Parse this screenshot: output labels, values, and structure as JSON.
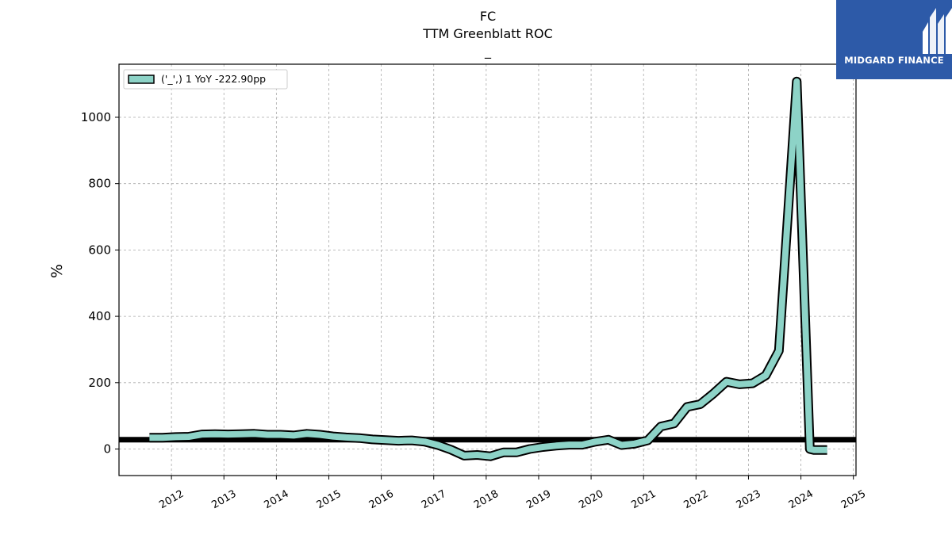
{
  "chart_data": {
    "type": "line",
    "title": "FC",
    "subtitle": "TTM Greenblatt ROC",
    "subtitle2": "_",
    "ylabel": "%",
    "xlabel": "",
    "ylim": [
      -80,
      1160
    ],
    "xlim": [
      2011.0,
      2025.05
    ],
    "yticks": [
      0,
      200,
      400,
      600,
      800,
      1000
    ],
    "xticks": [
      "2012",
      "2013",
      "2014",
      "2015",
      "2016",
      "2017",
      "2018",
      "2019",
      "2020",
      "2021",
      "2022",
      "2023",
      "2024",
      "2025"
    ],
    "grid": true,
    "legend_position": "top-left",
    "reference_line": 28,
    "series": [
      {
        "name": "('_',) 1 YoY -222.90pp",
        "color": "#8dd3c7",
        "x": [
          2011.58,
          2011.83,
          2012.08,
          2012.33,
          2012.58,
          2012.83,
          2013.08,
          2013.33,
          2013.58,
          2013.83,
          2014.08,
          2014.33,
          2014.58,
          2014.83,
          2015.08,
          2015.33,
          2015.58,
          2015.83,
          2016.08,
          2016.33,
          2016.58,
          2016.83,
          2017.08,
          2017.33,
          2017.58,
          2017.83,
          2018.08,
          2018.33,
          2018.58,
          2018.83,
          2019.08,
          2019.33,
          2019.58,
          2019.83,
          2020.08,
          2020.33,
          2020.58,
          2020.83,
          2021.08,
          2021.33,
          2021.58,
          2021.83,
          2022.08,
          2022.33,
          2022.58,
          2022.83,
          2023.08,
          2023.33,
          2023.58,
          2023.92,
          2024.17,
          2024.25,
          2024.5
        ],
        "values": [
          34,
          34,
          36,
          37,
          44,
          45,
          44,
          45,
          46,
          43,
          43,
          41,
          46,
          43,
          38,
          35,
          33,
          29,
          27,
          25,
          26,
          22,
          12,
          -2,
          -20,
          -18,
          -22,
          -10,
          -10,
          0,
          6,
          10,
          13,
          13,
          22,
          28,
          12,
          16,
          26,
          68,
          77,
          127,
          135,
          167,
          203,
          195,
          198,
          222,
          296,
          1108,
          0,
          -3,
          -3
        ]
      }
    ]
  },
  "logo": {
    "text": "MIDGARD FINANCE"
  }
}
